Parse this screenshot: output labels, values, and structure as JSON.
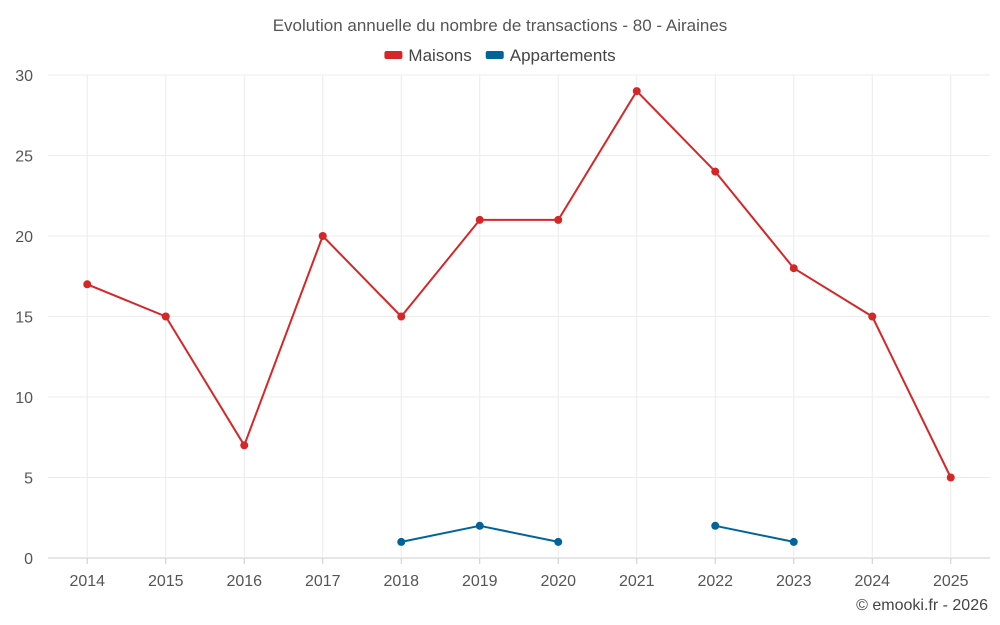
{
  "chart_data": {
    "type": "line",
    "title": "Evolution annuelle du nombre de transactions - 80 - Airaines",
    "categories": [
      "2014",
      "2015",
      "2016",
      "2017",
      "2018",
      "2019",
      "2020",
      "2021",
      "2022",
      "2023",
      "2024",
      "2025"
    ],
    "ylim": [
      0,
      30
    ],
    "yticks": [
      0,
      5,
      10,
      15,
      20,
      25,
      30
    ],
    "grid": true,
    "legend_position": "top-center",
    "series": [
      {
        "name": "Maisons",
        "color": "#d62728",
        "values": [
          17,
          15,
          7,
          20,
          15,
          21,
          21,
          29,
          24,
          18,
          15,
          5
        ]
      },
      {
        "name": "Appartements",
        "color": "#00649a",
        "values": [
          null,
          null,
          null,
          null,
          1,
          2,
          1,
          null,
          2,
          1,
          null,
          null
        ]
      }
    ]
  },
  "credit": "© emooki.fr - 2026"
}
